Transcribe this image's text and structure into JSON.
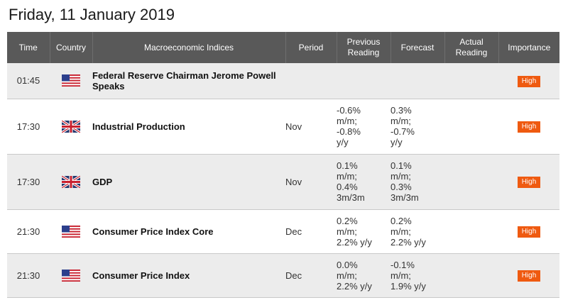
{
  "page": {
    "title": "Friday, 11 January 2019"
  },
  "columns": {
    "time": "Time",
    "country": "Country",
    "event": "Macroeconomic Indices",
    "period": "Period",
    "previous": "Previous Reading",
    "forecast": "Forecast",
    "actual": "Actual Reading",
    "importance": "Importance"
  },
  "rows": [
    {
      "time": "01:45",
      "country": "us-flag-icon",
      "event": "Federal Reserve Chairman Jerome Powell Speaks",
      "period": "",
      "previous": "",
      "forecast": "",
      "actual": "",
      "importance": "High"
    },
    {
      "time": "17:30",
      "country": "uk-flag-icon",
      "event": "Industrial Production",
      "period": "Nov",
      "previous": "-0.6%\nm/m;\n-0.8%\ny/y",
      "forecast": "0.3%\nm/m;\n-0.7%\ny/y",
      "actual": "",
      "importance": "High"
    },
    {
      "time": "17:30",
      "country": "uk-flag-icon",
      "event": "GDP",
      "period": "Nov",
      "previous": "0.1%\nm/m;\n0.4%\n3m/3m",
      "forecast": "0.1%\nm/m;\n0.3%\n3m/3m",
      "actual": "",
      "importance": "High"
    },
    {
      "time": "21:30",
      "country": "us-flag-icon",
      "event": "Consumer Price Index Core",
      "period": "Dec",
      "previous": "0.2%\nm/m;\n2.2% y/y",
      "forecast": "0.2%\nm/m;\n2.2% y/y",
      "actual": "",
      "importance": "High"
    },
    {
      "time": "21:30",
      "country": "us-flag-icon",
      "event": "Consumer Price Index",
      "period": "Dec",
      "previous": "0.0%\nm/m;\n2.2% y/y",
      "forecast": "-0.1%\nm/m;\n1.9% y/y",
      "actual": "",
      "importance": "High"
    }
  ],
  "colors": {
    "header_bg": "#595959",
    "badge": "#ef5a10",
    "row_alt": "#ececec"
  }
}
